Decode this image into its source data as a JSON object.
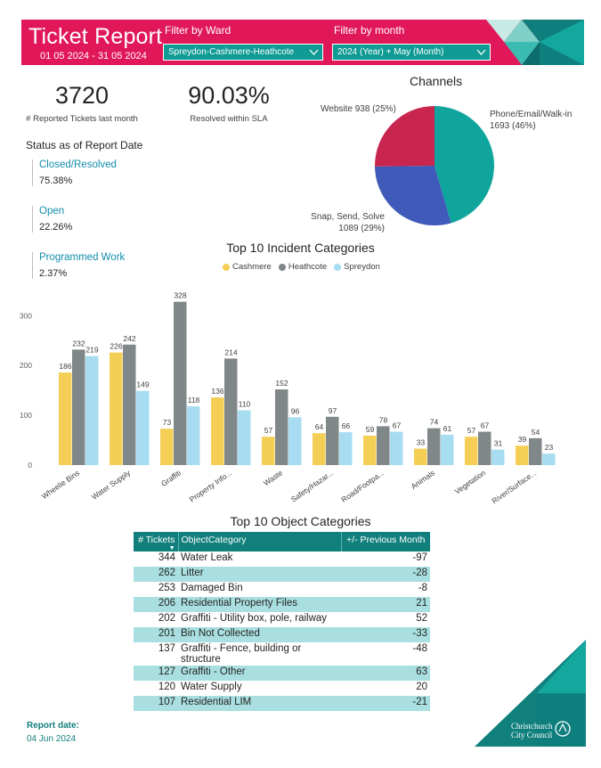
{
  "header": {
    "title": "Ticket Report",
    "date_range": "01 05 2024 - 31 05 2024",
    "ward_filter": {
      "label": "Filter by Ward",
      "value": "Spreydon-Cashmere-Heathcote"
    },
    "month_filter": {
      "label": "Filter by month",
      "value": "2024 (Year) + May (Month)"
    },
    "accent_color": "#e0185a",
    "teal_color": "#0f9b94"
  },
  "kpis": {
    "reported": {
      "value": "3720",
      "label": "# Reported Tickets last month"
    },
    "sla": {
      "value": "90.03%",
      "label": "Resolved within SLA"
    }
  },
  "status": {
    "title": "Status as of Report Date",
    "items": [
      {
        "name": "Closed/Resolved",
        "value": "75.38%"
      },
      {
        "name": "Open",
        "value": "22.26%"
      },
      {
        "name": "Programmed Work",
        "value": "2.37%"
      }
    ]
  },
  "channels": {
    "title": "Channels",
    "labels": {
      "website": "Website 938 (25%)",
      "phone_line1": "Phone/Email/Walk-in",
      "phone_line2": "1693 (46%)",
      "snap_line1": "Snap, Send, Solve",
      "snap_line2": "1089 (29%)"
    }
  },
  "incident_chart": {
    "title": "Top 10 Incident Categories",
    "legend": [
      "Cashmere",
      "Heathcote",
      "Spreydon"
    ]
  },
  "chart_data": [
    {
      "type": "pie",
      "title": "Channels",
      "slices": [
        {
          "name": "Phone/Email/Walk-in",
          "value": 1693,
          "percent": 46,
          "color": "#0fa59d"
        },
        {
          "name": "Snap, Send, Solve",
          "value": 1089,
          "percent": 29,
          "color": "#3f5ab8"
        },
        {
          "name": "Website",
          "value": 938,
          "percent": 25,
          "color": "#c8254f"
        }
      ]
    },
    {
      "type": "bar",
      "title": "Top 10 Incident Categories",
      "categories": [
        "Wheelie Bins",
        "Water Supply",
        "Graffiti",
        "Property Info...",
        "Waste",
        "Safety/Hazar...",
        "Road/Footpa...",
        "Animals",
        "Vegetation",
        "River/Surface..."
      ],
      "series": [
        {
          "name": "Cashmere",
          "color": "#f5cf55",
          "values": [
            186,
            226,
            73,
            136,
            57,
            64,
            59,
            33,
            57,
            39
          ]
        },
        {
          "name": "Heathcote",
          "color": "#808788",
          "values": [
            232,
            242,
            328,
            214,
            152,
            97,
            78,
            74,
            67,
            54
          ]
        },
        {
          "name": "Spreydon",
          "color": "#a8dcf0",
          "values": [
            219,
            149,
            118,
            110,
            96,
            66,
            67,
            61,
            31,
            23
          ]
        }
      ],
      "yticks": [
        "0",
        "100",
        "200",
        "300"
      ],
      "ylim": [
        0,
        340
      ],
      "legend": "top-center",
      "grid": false
    }
  ],
  "object_table": {
    "title": "Top 10 Object Categories",
    "headers": [
      "# Tickets",
      "ObjectCategory",
      "+/- Previous Month"
    ],
    "rows": [
      {
        "tickets": "344",
        "category": "Water Leak",
        "diff": "-97"
      },
      {
        "tickets": "262",
        "category": "Litter",
        "diff": "-28"
      },
      {
        "tickets": "253",
        "category": "Damaged Bin",
        "diff": "-8"
      },
      {
        "tickets": "206",
        "category": "Residential Property Files",
        "diff": "21"
      },
      {
        "tickets": "202",
        "category": "Graffiti - Utility box, pole, railway",
        "diff": "52"
      },
      {
        "tickets": "201",
        "category": "Bin Not Collected",
        "diff": "-33"
      },
      {
        "tickets": "137",
        "category": "Graffiti - Fence, building or structure",
        "diff": "-48"
      },
      {
        "tickets": "127",
        "category": "Graffiti - Other",
        "diff": "63"
      },
      {
        "tickets": "120",
        "category": "Water Supply",
        "diff": "20"
      },
      {
        "tickets": "107",
        "category": "Residential LIM",
        "diff": "-21"
      }
    ]
  },
  "footer": {
    "report_label": "Report date:",
    "report_date": "04 Jun 2024",
    "logo_line1": "Christchurch",
    "logo_line2": "City Council"
  }
}
